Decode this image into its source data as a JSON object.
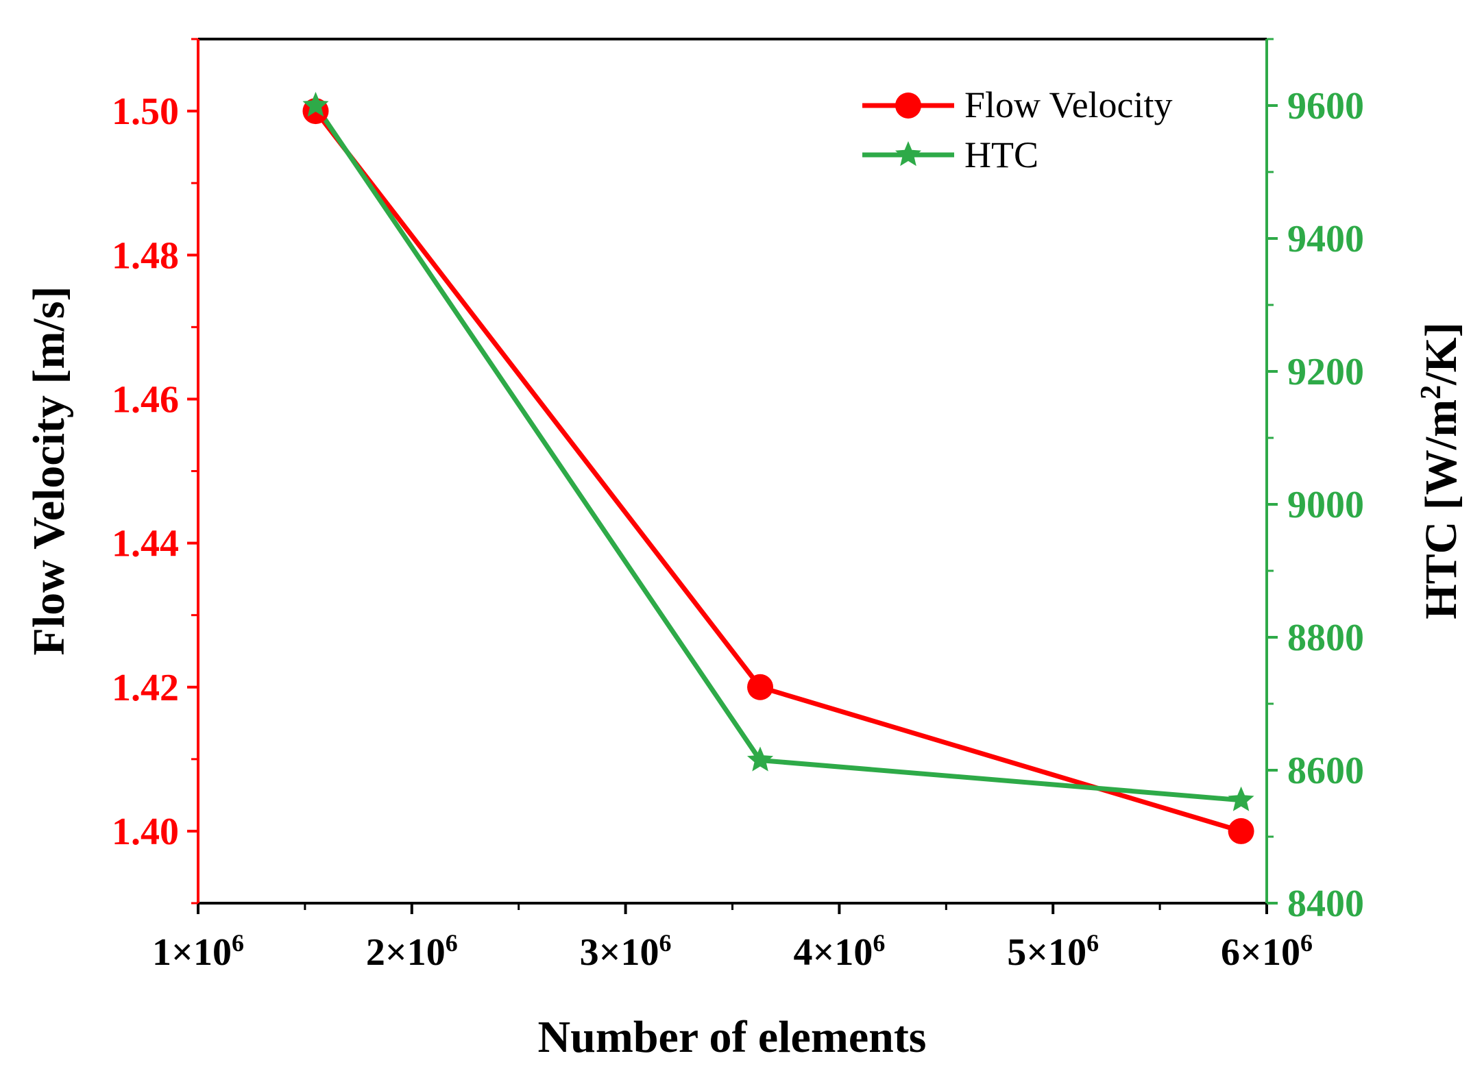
{
  "chart_data": {
    "type": "line",
    "xlabel": "Number of elements",
    "ylabel_left": "Flow Velocity [m/s]",
    "ylabel_right_main": "HTC [W/m",
    "ylabel_right_sup": "2",
    "ylabel_right_tail": "/K]",
    "xlim": [
      1000000,
      6000000
    ],
    "ylim_left": [
      1.39,
      1.51
    ],
    "ylim_right": [
      8400,
      9700
    ],
    "x_ticks": [
      {
        "value": 1000000,
        "base": "1×10",
        "exp": "6"
      },
      {
        "value": 2000000,
        "base": "2×10",
        "exp": "6"
      },
      {
        "value": 3000000,
        "base": "3×10",
        "exp": "6"
      },
      {
        "value": 4000000,
        "base": "4×10",
        "exp": "6"
      },
      {
        "value": 5000000,
        "base": "5×10",
        "exp": "6"
      },
      {
        "value": 6000000,
        "base": "6×10",
        "exp": "6"
      }
    ],
    "y_left_ticks": [
      {
        "value": 1.4,
        "label": "1.40"
      },
      {
        "value": 1.42,
        "label": "1.42"
      },
      {
        "value": 1.44,
        "label": "1.44"
      },
      {
        "value": 1.46,
        "label": "1.46"
      },
      {
        "value": 1.48,
        "label": "1.48"
      },
      {
        "value": 1.5,
        "label": "1.50"
      }
    ],
    "y_right_ticks": [
      {
        "value": 8400,
        "label": "8400"
      },
      {
        "value": 8600,
        "label": "8600"
      },
      {
        "value": 8800,
        "label": "8800"
      },
      {
        "value": 9000,
        "label": "9000"
      },
      {
        "value": 9200,
        "label": "9200"
      },
      {
        "value": 9400,
        "label": "9400"
      },
      {
        "value": 9600,
        "label": "9600"
      }
    ],
    "series": [
      {
        "name": "Flow Velocity",
        "axis": "left",
        "marker": "circle",
        "color": "#ff0000",
        "x": [
          1550000,
          3630000,
          5880000
        ],
        "values": [
          1.5,
          1.42,
          1.4
        ]
      },
      {
        "name": "HTC",
        "axis": "right",
        "marker": "star",
        "color": "#2eaa48",
        "x": [
          1550000,
          3630000,
          5880000
        ],
        "values": [
          9600,
          8615,
          8555
        ]
      }
    ],
    "legend_position": "top-right",
    "left_axis_color": "#ff0000",
    "right_axis_color": "#2eaa48"
  }
}
